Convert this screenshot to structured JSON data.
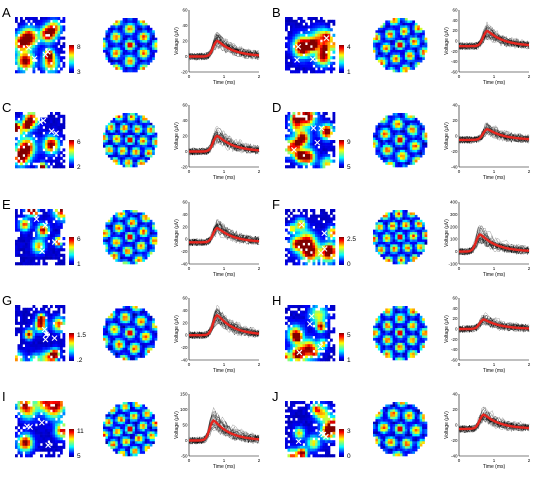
{
  "chart_data": {
    "type": "figure",
    "panels": [
      {
        "label": "A",
        "colorbar": {
          "max": "8",
          "min": "3"
        },
        "trace": {
          "ylim": [
            -20,
            60
          ],
          "yticks": [
            "60",
            "40",
            "20",
            "0",
            "-20"
          ],
          "xticks": [
            "0",
            "1",
            "2"
          ],
          "xlabel": "Time (ms)",
          "ylabel": "Voltage (μV)",
          "peak_ms": 0.8,
          "peak_uv": 22,
          "base_uv": 0
        }
      },
      {
        "label": "B",
        "colorbar": {
          "max": "4",
          "min": "1"
        },
        "trace": {
          "ylim": [
            -60,
            60
          ],
          "yticks": [
            "60",
            "40",
            "20",
            "0",
            "-20",
            "-40",
            "-60"
          ],
          "xticks": [
            "0",
            "1",
            "2"
          ],
          "xlabel": "Time (ms)",
          "ylabel": "Voltage (μV)",
          "peak_ms": 0.8,
          "peak_uv": 22,
          "base_uv": -10
        }
      },
      {
        "label": "C",
        "colorbar": {
          "max": "6",
          "min": "2"
        },
        "trace": {
          "ylim": [
            -20,
            60
          ],
          "yticks": [
            "60",
            "40",
            "20",
            "0",
            "-20"
          ],
          "xticks": [
            "0",
            "1",
            "2"
          ],
          "xlabel": "Time (ms)",
          "ylabel": "Voltage (μV)",
          "peak_ms": 0.8,
          "peak_uv": 22,
          "base_uv": 0
        }
      },
      {
        "label": "D",
        "colorbar": {
          "max": "9",
          "min": "5"
        },
        "trace": {
          "ylim": [
            -40,
            40
          ],
          "yticks": [
            "40",
            "20",
            "0",
            "-20",
            "-40"
          ],
          "xticks": [
            "0",
            "1",
            "2"
          ],
          "xlabel": "Time (ms)",
          "ylabel": "Voltage (μV)",
          "peak_ms": 0.8,
          "peak_uv": 10,
          "base_uv": -5
        }
      },
      {
        "label": "E",
        "colorbar": {
          "max": "6",
          "min": "1"
        },
        "trace": {
          "ylim": [
            -40,
            60
          ],
          "yticks": [
            "60",
            "40",
            "20",
            "0",
            "-20",
            "-40"
          ],
          "xticks": [
            "0",
            "1",
            "2"
          ],
          "xlabel": "Time (ms)",
          "ylabel": "Voltage (μV)",
          "peak_ms": 0.8,
          "peak_uv": 20,
          "base_uv": -5
        }
      },
      {
        "label": "F",
        "colorbar": {
          "max": "2.5",
          "min": "0"
        },
        "trace": {
          "ylim": [
            -100,
            400
          ],
          "yticks": [
            "400",
            "300",
            "200",
            "100",
            "0",
            "-100"
          ],
          "xticks": [
            "0",
            "1",
            "2"
          ],
          "xlabel": "Time (ms)",
          "ylabel": "Voltage (μV)",
          "peak_ms": 0.6,
          "peak_uv": 150,
          "base_uv": 0
        }
      },
      {
        "label": "G",
        "colorbar": {
          "max": "1.5",
          "min": ".2"
        },
        "trace": {
          "ylim": [
            -40,
            60
          ],
          "yticks": [
            "60",
            "40",
            "20",
            "0",
            "-20",
            "-40"
          ],
          "xticks": [
            "0",
            "1",
            "2"
          ],
          "xlabel": "Time (ms)",
          "ylabel": "Voltage (μV)",
          "peak_ms": 0.8,
          "peak_uv": 35,
          "base_uv": 0
        }
      },
      {
        "label": "H",
        "colorbar": {
          "max": "5",
          "min": "1"
        },
        "trace": {
          "ylim": [
            -60,
            60
          ],
          "yticks": [
            "60",
            "40",
            "20",
            "0",
            "-20",
            "-40",
            "-60"
          ],
          "xticks": [
            "0",
            "1",
            "2"
          ],
          "xlabel": "Time (ms)",
          "ylabel": "Voltage (μV)",
          "peak_ms": 0.7,
          "peak_uv": 20,
          "base_uv": 0
        }
      },
      {
        "label": "I",
        "colorbar": {
          "max": "11",
          "min": "5"
        },
        "trace": {
          "ylim": [
            -50,
            150
          ],
          "yticks": [
            "150",
            "100",
            "50",
            "0",
            "-50"
          ],
          "xticks": [
            "0",
            "1",
            "2"
          ],
          "xlabel": "Time (ms)",
          "ylabel": "Voltage (μV)",
          "peak_ms": 0.7,
          "peak_uv": 70,
          "base_uv": 0
        }
      },
      {
        "label": "J",
        "colorbar": {
          "max": "3",
          "min": "0"
        },
        "trace": {
          "ylim": [
            -40,
            40
          ],
          "yticks": [
            "40",
            "20",
            "0",
            "-20",
            "-40"
          ],
          "xticks": [
            "0",
            "1",
            "2"
          ],
          "xlabel": "Time (ms)",
          "ylabel": "Voltage (μV)",
          "peak_ms": 0.7,
          "peak_uv": 15,
          "base_uv": -5
        }
      }
    ]
  },
  "colors": {
    "mean_trace": "#e6261f",
    "single_traces": "#000000",
    "background": "#ffffff"
  }
}
